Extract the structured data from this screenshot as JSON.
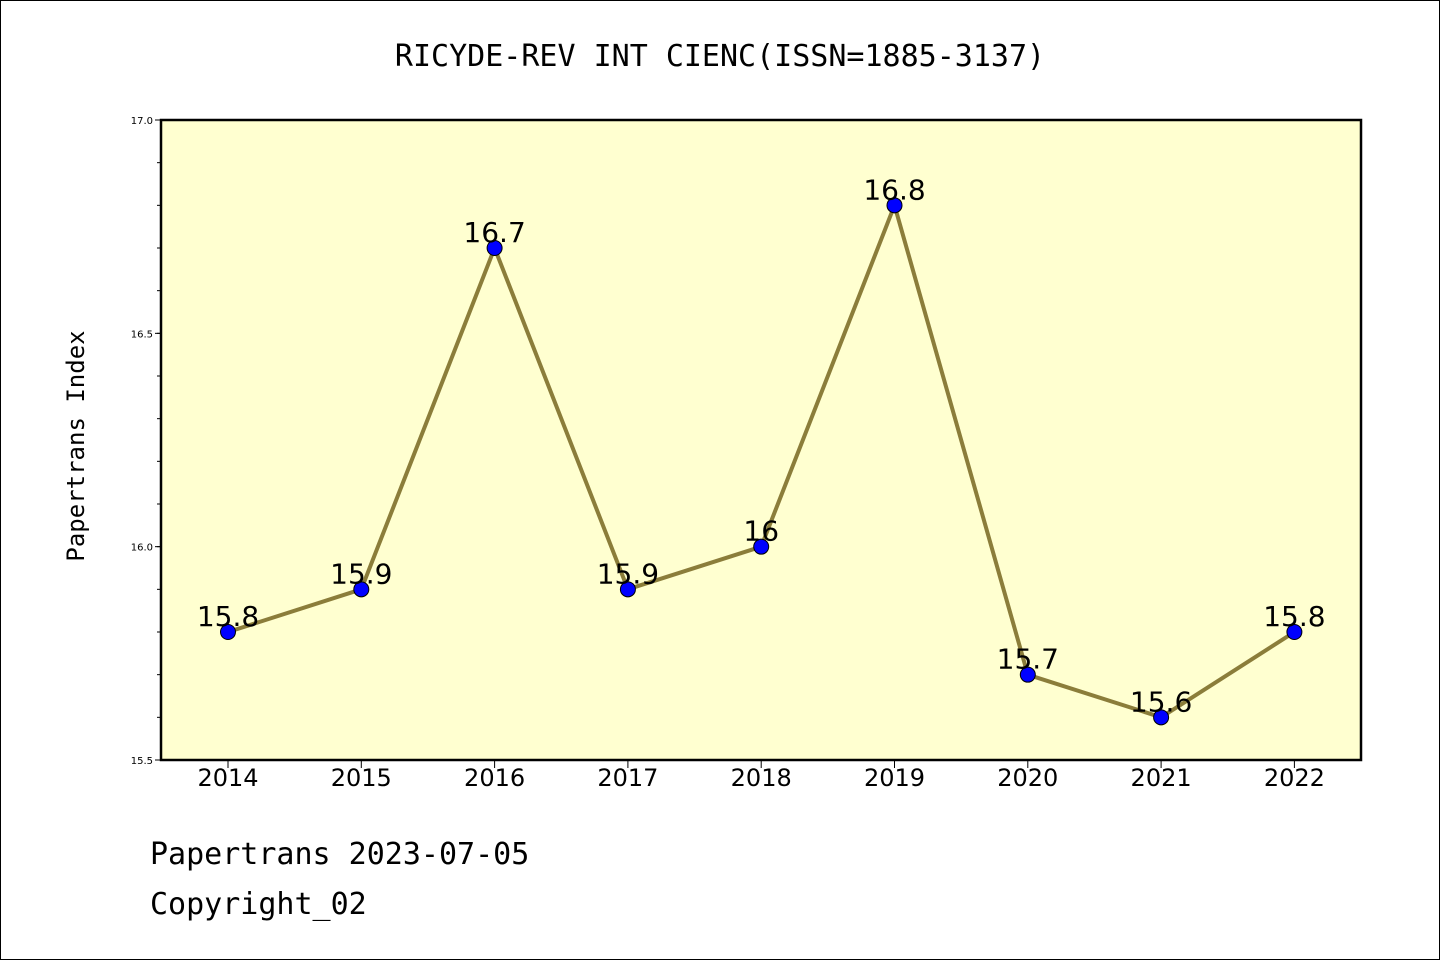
{
  "chart_data": {
    "type": "line",
    "title": "RICYDE-REV INT CIENC(ISSN=1885-3137)",
    "xlabel": "",
    "ylabel": "Papertrans Index",
    "categories": [
      "2014",
      "2015",
      "2016",
      "2017",
      "2018",
      "2019",
      "2020",
      "2021",
      "2022"
    ],
    "values": [
      15.8,
      15.9,
      16.7,
      15.9,
      16.0,
      16.8,
      15.7,
      15.6,
      15.8
    ],
    "data_labels": [
      "15.8",
      "15.9",
      "16.7",
      "15.9",
      "16",
      "16.8",
      "15.7",
      "15.6",
      "15.8"
    ],
    "ylim": [
      15.5,
      17.0
    ],
    "yticks": [
      "15.5",
      "16.0",
      "16.5",
      "17.0"
    ],
    "grid": false,
    "colors": {
      "plot_background": "#ffffd0",
      "line": "#8b7d3a",
      "marker": "#0000ff"
    }
  },
  "footer": {
    "line1": "Papertrans 2023-07-05",
    "line2": "Copyright_02"
  }
}
